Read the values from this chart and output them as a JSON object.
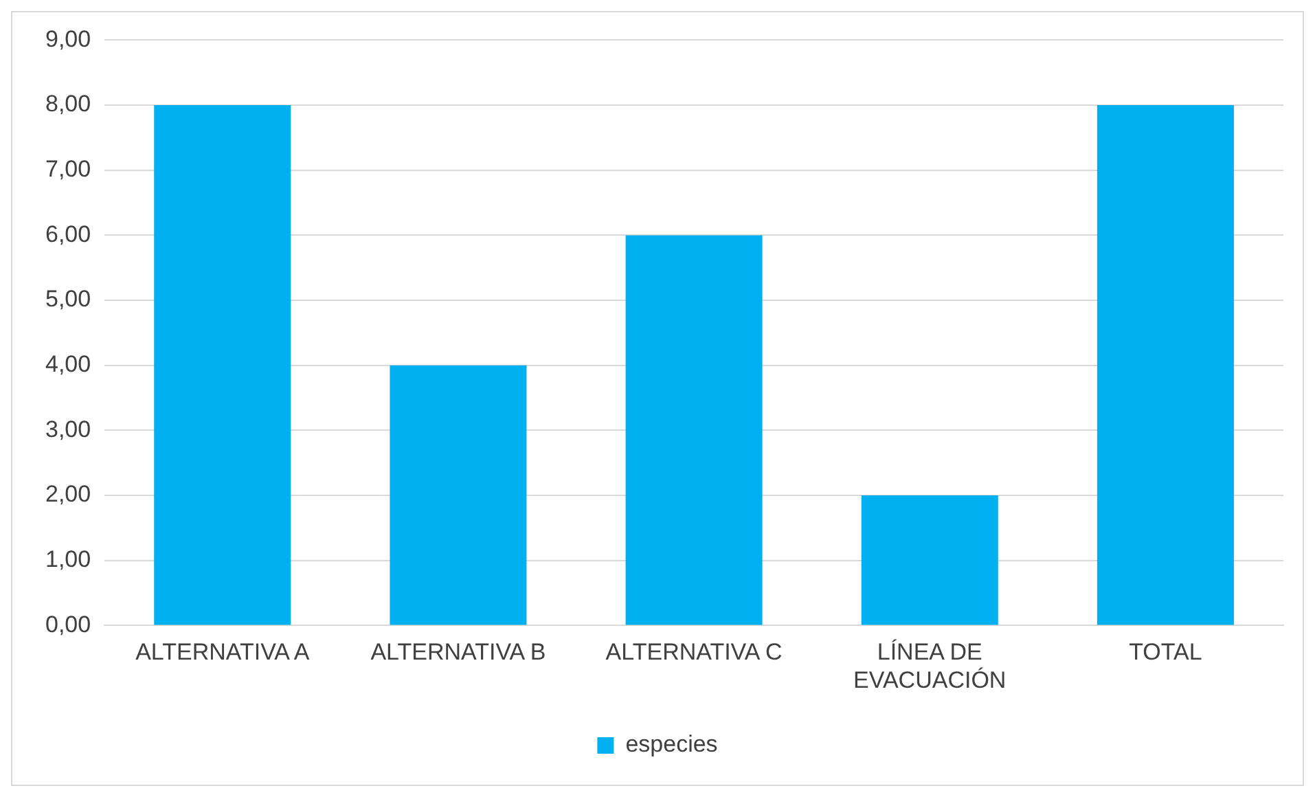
{
  "chart_data": {
    "type": "bar",
    "categories": [
      "ALTERNATIVA A",
      "ALTERNATIVA B",
      "ALTERNATIVA C",
      "LÍNEA DE EVACUACIÓN",
      "TOTAL"
    ],
    "series": [
      {
        "name": "especies",
        "color": "#00b0f0",
        "values": [
          8,
          4,
          6,
          2,
          8
        ]
      }
    ],
    "ylim": [
      0,
      9
    ],
    "yticks": [
      {
        "value": 0,
        "label": "0,00"
      },
      {
        "value": 1,
        "label": "1,00"
      },
      {
        "value": 2,
        "label": "2,00"
      },
      {
        "value": 3,
        "label": "3,00"
      },
      {
        "value": 4,
        "label": "4,00"
      },
      {
        "value": 5,
        "label": "5,00"
      },
      {
        "value": 6,
        "label": "6,00"
      },
      {
        "value": 7,
        "label": "7,00"
      },
      {
        "value": 8,
        "label": "8,00"
      },
      {
        "value": 9,
        "label": "9,00"
      }
    ],
    "grid": "y",
    "legend": "bottom"
  }
}
